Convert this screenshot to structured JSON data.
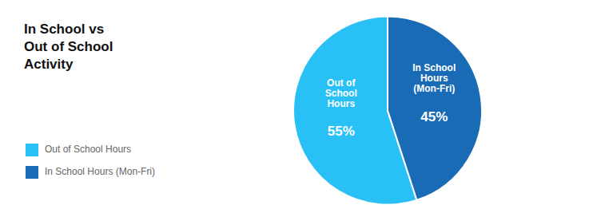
{
  "chart_data": {
    "type": "pie",
    "title": "In School vs\nOut of School\nActivity",
    "categories": [
      "Out of School Hours",
      "In School Hours (Mon-Fri)"
    ],
    "values": [
      55,
      45
    ],
    "value_labels": [
      "55%",
      "45%"
    ],
    "colors": [
      "#29C1F5",
      "#1A6BB5"
    ],
    "data_labels": true,
    "legend": "left",
    "annotations": [
      "Out of\nSchool\nHours",
      "In School\nHours\n(Mon-Fri)"
    ]
  }
}
